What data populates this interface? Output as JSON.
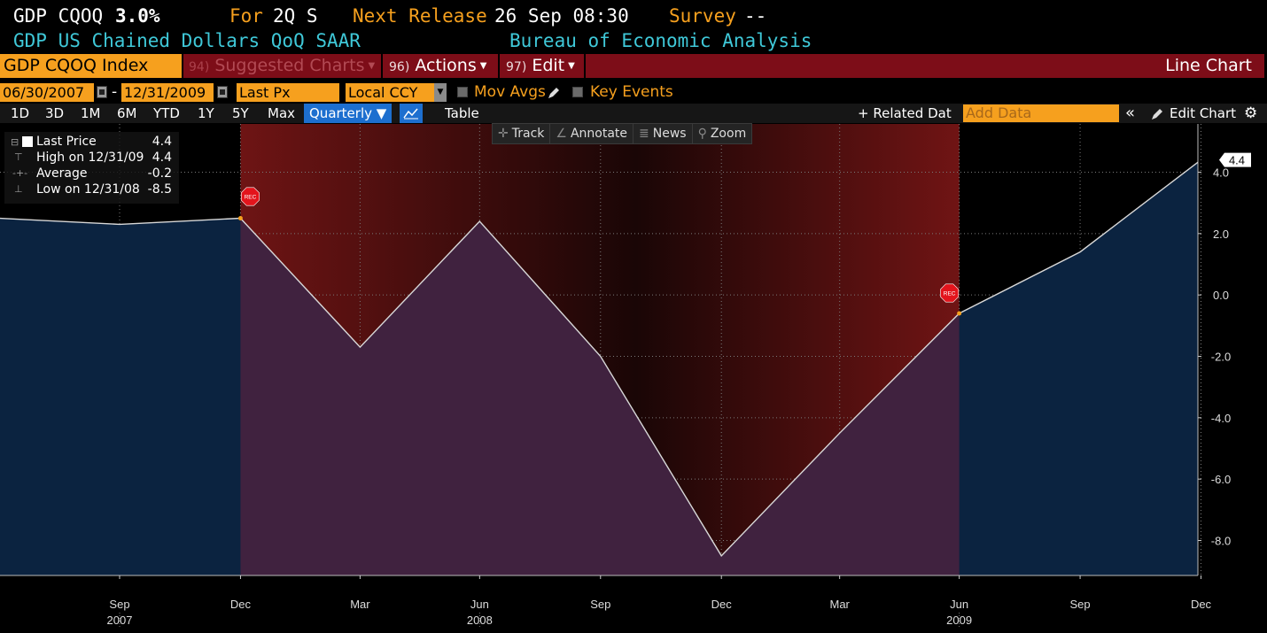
{
  "header": {
    "ticker": "GDP CQOQ",
    "value": "3.0%",
    "for_label": "For",
    "for_value": "2Q S",
    "next_release_label": "Next Release",
    "next_release_value": "26 Sep 08:30",
    "survey_label": "Survey",
    "survey_value": "--",
    "description": "GDP US Chained Dollars QoQ SAAR",
    "source": "Bureau of Economic Analysis"
  },
  "toolbar": {
    "security": "GDP CQOQ Index",
    "suggested_num": "94)",
    "suggested_label": "Suggested Charts",
    "actions_num": "96)",
    "actions_label": "Actions",
    "edit_num": "97)",
    "edit_label": "Edit",
    "chart_type": "Line Chart"
  },
  "settings": {
    "start_date": "06/30/2007",
    "end_date": "12/31/2009",
    "dash": "-",
    "field": "Last Px",
    "currency": "Local CCY",
    "mov_avgs": "Mov Avgs",
    "key_events": "Key Events"
  },
  "ranges": {
    "buttons": [
      "1D",
      "3D",
      "1M",
      "6M",
      "YTD",
      "1Y",
      "5Y",
      "Max"
    ],
    "periodicity": "Quarterly",
    "table": "Table",
    "related": "+ Related Dat",
    "add_data_placeholder": "Add Data",
    "collapse": "«",
    "edit_chart": "Edit Chart",
    "gear": "⚙"
  },
  "tools": {
    "track": "Track",
    "annotate": "Annotate",
    "news": "News",
    "zoom": "Zoom"
  },
  "legend": {
    "last_price_label": "Last Price",
    "last_price_value": "4.4",
    "high_label": "High on 12/31/09",
    "high_value": "4.4",
    "average_label": "Average",
    "average_value": "-0.2",
    "low_label": "Low on 12/31/08",
    "low_value": "-8.5"
  },
  "colors": {
    "background": "#000000",
    "area_fill": "#0b2340",
    "recession_shade": "#7a1a1a",
    "line": "#d8d8d8",
    "accent_orange": "#f6a01e",
    "cyan_text": "#3fc8d8",
    "toolbar_red": "#7d0d18"
  },
  "chart_data": {
    "type": "area",
    "x": [
      "2007-06-30",
      "2007-09-30",
      "2007-12-31",
      "2008-03-31",
      "2008-06-30",
      "2008-09-30",
      "2008-12-31",
      "2009-03-31",
      "2009-06-30",
      "2009-09-30",
      "2009-12-31"
    ],
    "series": [
      {
        "name": "Last Price",
        "values": [
          2.5,
          2.3,
          2.5,
          -1.7,
          2.4,
          -2.0,
          -8.5,
          -4.5,
          -0.6,
          1.4,
          4.4
        ]
      }
    ],
    "last_value_label": "4.4",
    "ylim": [
      -9.5,
      5.5
    ],
    "yticks": [
      4.0,
      2.0,
      0.0,
      -2.0,
      -4.0,
      -6.0,
      -8.0
    ],
    "ytick_labels": [
      "4.0",
      "2.0",
      "0.0",
      "-2.0",
      "-4.0",
      "-6.0",
      "-8.0"
    ],
    "xticks": [
      {
        "date": "2007-09-30",
        "label": "Sep",
        "year": "2007"
      },
      {
        "date": "2007-12-31",
        "label": "Dec",
        "year": ""
      },
      {
        "date": "2008-03-31",
        "label": "Mar",
        "year": ""
      },
      {
        "date": "2008-06-30",
        "label": "Jun",
        "year": "2008"
      },
      {
        "date": "2008-09-30",
        "label": "Sep",
        "year": ""
      },
      {
        "date": "2008-12-31",
        "label": "Dec",
        "year": ""
      },
      {
        "date": "2009-03-31",
        "label": "Mar",
        "year": ""
      },
      {
        "date": "2009-06-30",
        "label": "Jun",
        "year": "2009"
      },
      {
        "date": "2009-09-30",
        "label": "Sep",
        "year": ""
      },
      {
        "date": "2009-12-31",
        "label": "Dec",
        "year": ""
      }
    ],
    "recession": {
      "start": "2007-12-31",
      "end": "2009-06-30",
      "marker_label": "REC"
    },
    "grid": true
  }
}
